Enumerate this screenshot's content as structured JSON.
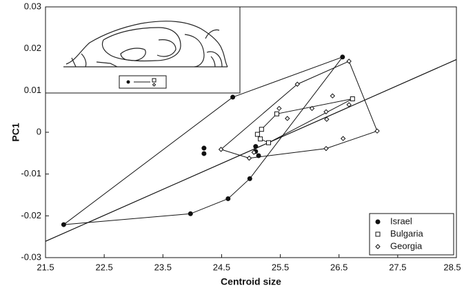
{
  "chart_data": {
    "type": "scatter",
    "xlabel": "Centroid size",
    "ylabel": "PC1",
    "xlim": [
      21.5,
      28.5
    ],
    "ylim": [
      -0.03,
      0.03
    ],
    "xticks": [
      21.5,
      22.5,
      23.5,
      24.5,
      25.5,
      26.5,
      27.5,
      28.5
    ],
    "yticks": [
      -0.03,
      -0.02,
      -0.01,
      0,
      0.01,
      0.02,
      0.03
    ],
    "legend": "lower right",
    "color": "#111111",
    "series": [
      {
        "name": "Israel",
        "marker": "circle",
        "x": [
          21.81,
          23.97,
          24.61,
          24.98,
          25.13,
          24.69,
          26.56,
          24.2,
          24.2,
          25.08,
          25.08
        ],
        "y": [
          -0.0221,
          -0.0195,
          -0.0159,
          -0.0111,
          -0.0056,
          0.0084,
          0.018,
          -0.0038,
          -0.0051,
          -0.0034,
          -0.0046
        ]
      },
      {
        "name": "Bulgaria",
        "marker": "square",
        "x": [
          25.11,
          25.16,
          25.3,
          25.44,
          26.73,
          25.18
        ],
        "y": [
          -0.0005,
          -0.0016,
          -0.0025,
          0.0044,
          0.008,
          0.0007
        ]
      },
      {
        "name": "Georgia",
        "marker": "diamond",
        "x": [
          24.49,
          24.97,
          25.48,
          25.79,
          26.04,
          26.28,
          26.29,
          26.39,
          26.67,
          26.67,
          27.15,
          26.57,
          26.28,
          25.05,
          25.62
        ],
        "y": [
          -0.0041,
          -0.0062,
          0.0057,
          0.0115,
          0.0057,
          0.0049,
          0.0031,
          0.0087,
          0.017,
          0.0066,
          0.0003,
          -0.0015,
          -0.0039,
          -0.0048,
          0.0033
        ]
      }
    ],
    "regression": {
      "x": [
        21.5,
        28.5
      ],
      "y": [
        -0.0261,
        0.0174
      ]
    }
  }
}
